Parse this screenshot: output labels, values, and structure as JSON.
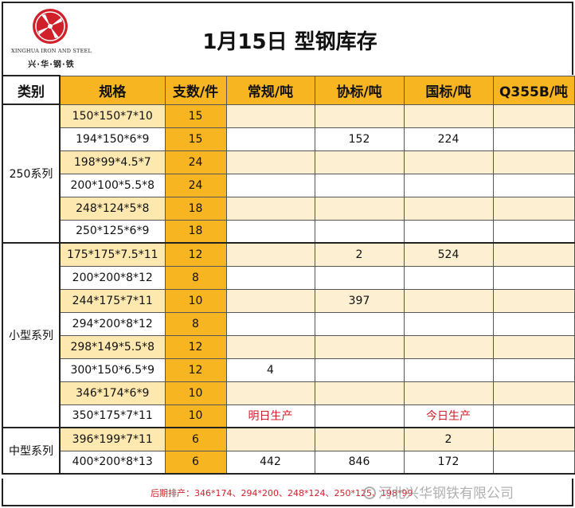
{
  "logo": {
    "english": "XINGHUA IRON AND STEEL",
    "chinese": "兴·华·钢·铁",
    "color": "#d0202a"
  },
  "title": "1月15日 型钢库存",
  "headers": [
    "类别",
    "规格",
    "支数/件",
    "常规/吨",
    "协标/吨",
    "国标/吨",
    "Q355B/吨"
  ],
  "categories": [
    "250系列",
    "小型系列",
    "中型系列"
  ],
  "rows": [
    {
      "spec": "150*150*7*10",
      "count": "15",
      "regular": "",
      "association": "",
      "national": "",
      "q355b": ""
    },
    {
      "spec": "194*150*6*9",
      "count": "15",
      "regular": "",
      "association": "152",
      "national": "224",
      "q355b": ""
    },
    {
      "spec": "198*99*4.5*7",
      "count": "24",
      "regular": "",
      "association": "",
      "national": "",
      "q355b": ""
    },
    {
      "spec": "200*100*5.5*8",
      "count": "24",
      "regular": "",
      "association": "",
      "national": "",
      "q355b": ""
    },
    {
      "spec": "248*124*5*8",
      "count": "18",
      "regular": "",
      "association": "",
      "national": "",
      "q355b": ""
    },
    {
      "spec": "250*125*6*9",
      "count": "18",
      "regular": "",
      "association": "",
      "national": "",
      "q355b": ""
    },
    {
      "spec": "175*175*7.5*11",
      "count": "12",
      "regular": "",
      "association": "2",
      "national": "524",
      "q355b": ""
    },
    {
      "spec": "200*200*8*12",
      "count": "8",
      "regular": "",
      "association": "",
      "national": "",
      "q355b": ""
    },
    {
      "spec": "244*175*7*11",
      "count": "10",
      "regular": "",
      "association": "397",
      "national": "",
      "q355b": ""
    },
    {
      "spec": "294*200*8*12",
      "count": "8",
      "regular": "",
      "association": "",
      "national": "",
      "q355b": ""
    },
    {
      "spec": "298*149*5.5*8",
      "count": "12",
      "regular": "",
      "association": "",
      "national": "",
      "q355b": ""
    },
    {
      "spec": "300*150*6.5*9",
      "count": "12",
      "regular": "4",
      "association": "",
      "national": "",
      "q355b": ""
    },
    {
      "spec": "346*174*6*9",
      "count": "10",
      "regular": "",
      "association": "",
      "national": "",
      "q355b": ""
    },
    {
      "spec": "350*175*7*11",
      "count": "10",
      "regular": "明日生产",
      "association": "",
      "national": "今日生产",
      "q355b": ""
    },
    {
      "spec": "396*199*7*11",
      "count": "6",
      "regular": "",
      "association": "",
      "national": "2",
      "q355b": ""
    },
    {
      "spec": "400*200*8*13",
      "count": "6",
      "regular": "442",
      "association": "846",
      "national": "172",
      "q355b": ""
    }
  ],
  "footer": {
    "note": "后期排产：346*174、294*200、248*124、250*125、198*99",
    "watermark": "河北兴华钢铁有限公司"
  },
  "colors": {
    "orange": "#f7b521",
    "light_yellow": "#fde9b0",
    "red_text": "#d0202a"
  }
}
